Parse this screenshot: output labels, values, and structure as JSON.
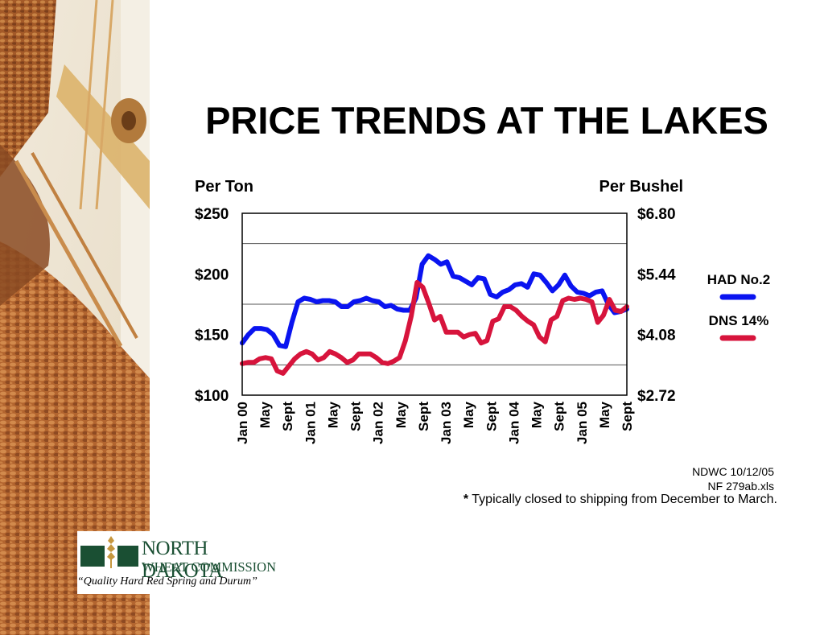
{
  "title": "PRICE TRENDS AT THE LAKES",
  "source_lines": [
    "NDWC 10/12/05",
    "NF 279ab.xls"
  ],
  "footnote": {
    "mark": "*",
    "text": " Typically closed to shipping from December to March."
  },
  "logo": {
    "line1": "NORTH DAKOTA",
    "line2": "WHEAT COMMISSION",
    "tagline": "“Quality Hard Red Spring and Durum”"
  },
  "colors": {
    "had": "#0a14f0",
    "dns": "#d7143c",
    "logo_green": "#1a4f33"
  },
  "chart_data": {
    "type": "line",
    "title": "",
    "left_axis_title": "Per Ton",
    "right_axis_title": "Per Bushel",
    "ylim": [
      100,
      250
    ],
    "left_ticks": [
      "$250",
      "$200",
      "$150",
      "$100"
    ],
    "right_ticks": [
      "$6.80",
      "$5.44",
      "$4.08",
      "$2.72"
    ],
    "gridlines": [
      125,
      175,
      225
    ],
    "x_tick_labels": [
      "Jan 00",
      "May",
      "Sept",
      "Jan 01",
      "May",
      "Sept",
      "Jan 02",
      "May",
      "Sept",
      "Jan 03",
      "May",
      "Sept",
      "Jan 04",
      "May",
      "Sept",
      "Jan 05",
      "May",
      "Sept"
    ],
    "x_tick_month_index": [
      0,
      4,
      8,
      12,
      16,
      20,
      24,
      28,
      32,
      36,
      40,
      44,
      48,
      52,
      56,
      60,
      64,
      68
    ],
    "x_range_months": [
      0,
      68
    ],
    "legend_position": "right",
    "series": [
      {
        "name": "HAD No.2",
        "color": "#0a14f0",
        "values": [
          143,
          150,
          155,
          155,
          154,
          150,
          141,
          140,
          160,
          177,
          180,
          179,
          177,
          178,
          178,
          177,
          173,
          173,
          177,
          178,
          180,
          178,
          177,
          173,
          174,
          171,
          170,
          170,
          180,
          208,
          215,
          212,
          208,
          210,
          198,
          197,
          194,
          191,
          197,
          196,
          183,
          181,
          185,
          187,
          191,
          192,
          189,
          200,
          199,
          193,
          186,
          191,
          199,
          190,
          185,
          184,
          182,
          185,
          186,
          175,
          168,
          169,
          171
        ]
      },
      {
        "name": "DNS 14%",
        "color": "#d7143c",
        "values": [
          126,
          127,
          127,
          130,
          131,
          130,
          120,
          118,
          124,
          130,
          134,
          136,
          134,
          129,
          131,
          136,
          134,
          131,
          127,
          129,
          134,
          134,
          134,
          131,
          127,
          126,
          128,
          131,
          145,
          165,
          193,
          189,
          176,
          162,
          165,
          152,
          152,
          152,
          148,
          150,
          151,
          143,
          145,
          161,
          163,
          173,
          173,
          170,
          165,
          161,
          158,
          148,
          144,
          162,
          165,
          178,
          180,
          179,
          180,
          179,
          177,
          160,
          166,
          179,
          170,
          169,
          173
        ]
      }
    ]
  }
}
